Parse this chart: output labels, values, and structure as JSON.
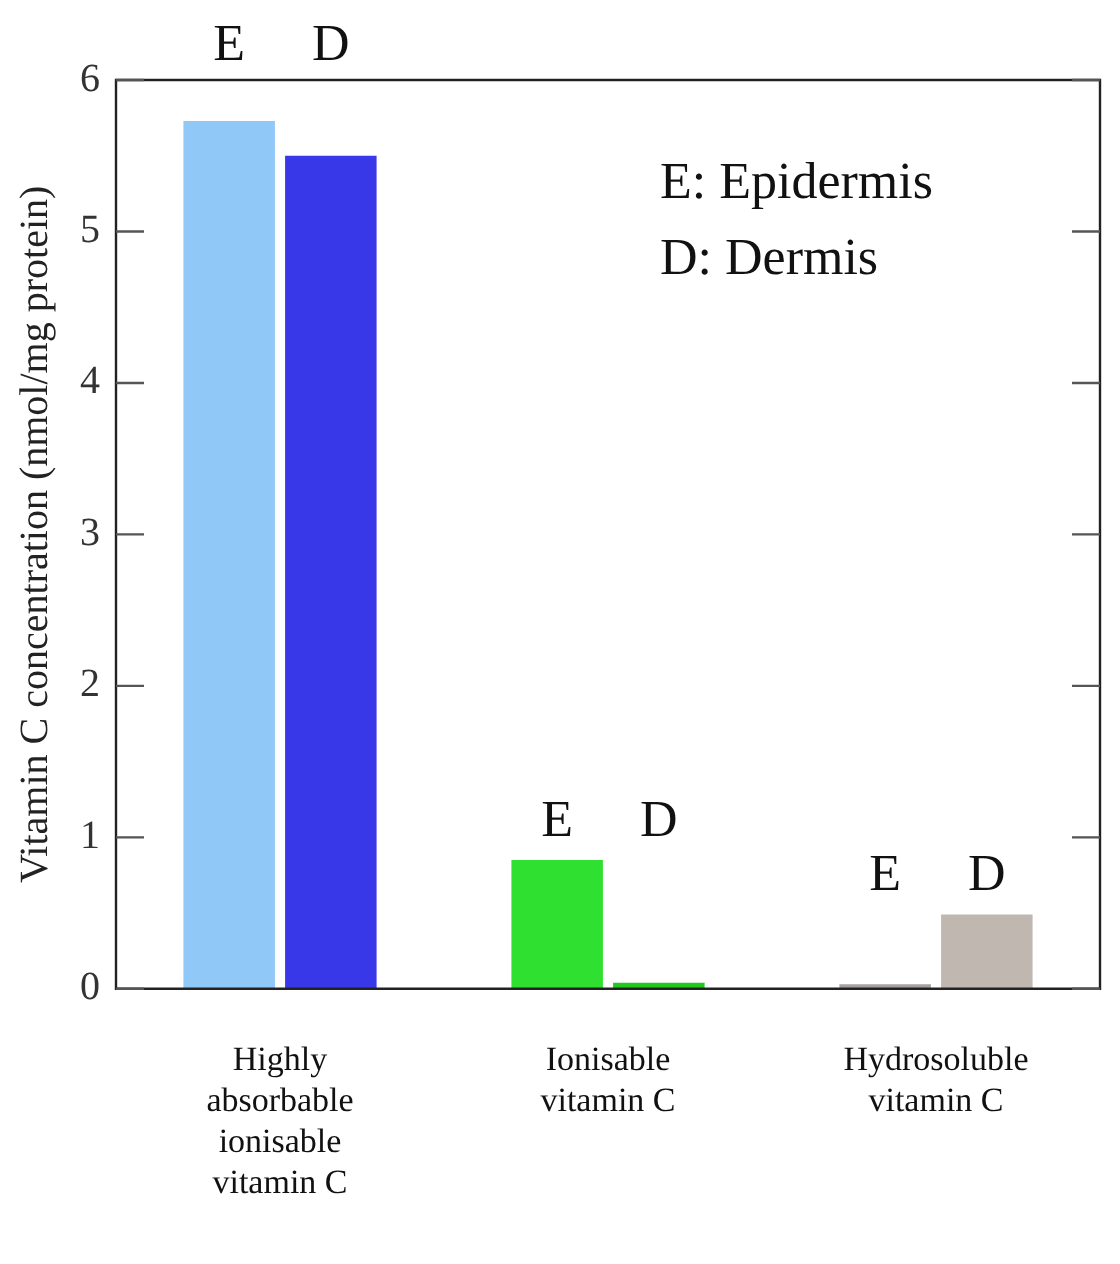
{
  "chart_data": {
    "type": "bar",
    "ylabel": "Vitamin C concentration (nmol/mg protein)",
    "categories": [
      "Highly absorbable ionisable vitamin C",
      "Ionisable vitamin C",
      "Hydrosoluble vitamin C"
    ],
    "series": [
      {
        "name": "E",
        "colors": [
          "#90c8f8",
          "#30e030",
          "#a8a0a0"
        ],
        "values": [
          5.73,
          0.85,
          0.03
        ]
      },
      {
        "name": "D",
        "colors": [
          "#3838e8",
          "#20c820",
          "#c0b8b0"
        ],
        "values": [
          5.5,
          0.04,
          0.49
        ]
      }
    ],
    "ylim": [
      0,
      6
    ],
    "yticks": [
      0,
      1,
      2,
      3,
      4,
      5,
      6
    ],
    "grid": false,
    "legend": false,
    "annotations": [
      "E: Epidermis",
      "D: Dermis"
    ]
  }
}
